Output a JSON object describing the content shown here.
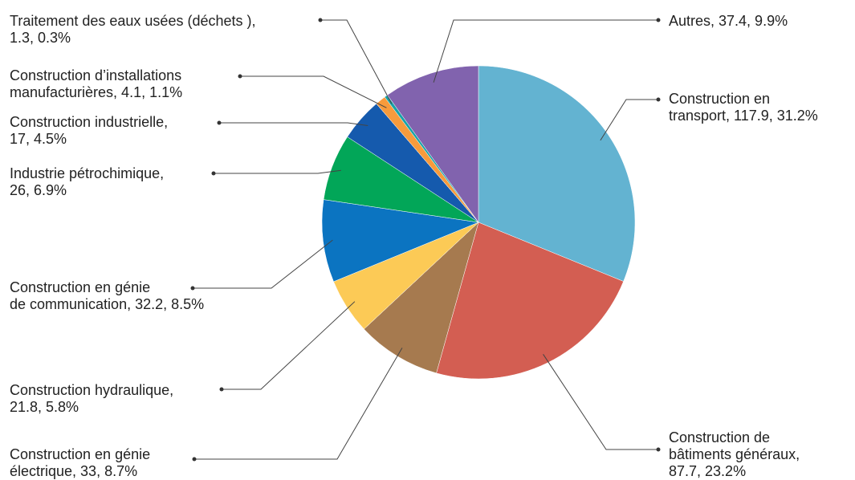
{
  "chart_data": {
    "type": "pie",
    "title": "",
    "legend": "none",
    "slices": [
      {
        "label_lines": [
          "Construction en",
          "transport, 117.9, 31.2%"
        ],
        "category": "Construction en transport",
        "value": 117.9,
        "percent": 31.2,
        "color": "#63b3d1"
      },
      {
        "label_lines": [
          "Construction de",
          "bâtiments généraux,",
          "87.7, 23.2%"
        ],
        "category": "Construction de bâtiments généraux",
        "value": 87.7,
        "percent": 23.2,
        "color": "#d35e52"
      },
      {
        "label_lines": [
          "Construction en génie",
          "électrique, 33, 8.7%"
        ],
        "category": "Construction en génie électrique",
        "value": 33,
        "percent": 8.7,
        "color": "#a67a4f"
      },
      {
        "label_lines": [
          "Construction hydraulique,",
          "21.8, 5.8%"
        ],
        "category": "Construction hydraulique",
        "value": 21.8,
        "percent": 5.8,
        "color": "#fcca56"
      },
      {
        "label_lines": [
          "Construction en génie",
          "de communication, 32.2, 8.5%"
        ],
        "category": "Construction en génie de communication",
        "value": 32.2,
        "percent": 8.5,
        "color": "#0b74c1"
      },
      {
        "label_lines": [
          "Industrie pétrochimique,",
          "26, 6.9%"
        ],
        "category": "Industrie pétrochimique",
        "value": 26,
        "percent": 6.9,
        "color": "#02a658"
      },
      {
        "label_lines": [
          "Construction industrielle,",
          "17, 4.5%"
        ],
        "category": "Construction industrielle",
        "value": 17,
        "percent": 4.5,
        "color": "#155aad"
      },
      {
        "label_lines": [
          "Construction d’installations",
          "manufacturières, 4.1, 1.1%"
        ],
        "category": "Construction d’installations manufacturières",
        "value": 4.1,
        "percent": 1.1,
        "color": "#f79b3c"
      },
      {
        "label_lines": [
          "Traitement des eaux usées (déchets ),",
          "1.3, 0.3%"
        ],
        "category": "Traitement des eaux usées (déchets )",
        "value": 1.3,
        "percent": 0.3,
        "color": "#19a3a8"
      },
      {
        "label_lines": [
          "Autres, 37.4, 9.9%"
        ],
        "category": "Autres",
        "value": 37.4,
        "percent": 9.9,
        "color": "#8163ae"
      }
    ]
  }
}
